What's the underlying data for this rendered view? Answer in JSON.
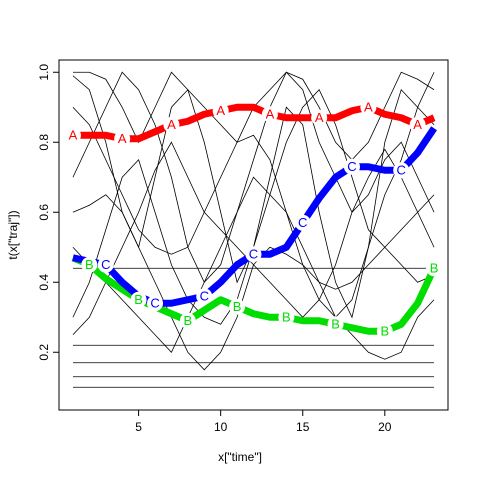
{
  "chart_data": {
    "type": "line",
    "x_label": "x[\"time\"]",
    "y_label": "t(x[\"traj\"])",
    "x": [
      1,
      2,
      3,
      4,
      5,
      6,
      7,
      8,
      9,
      10,
      11,
      12,
      13,
      14,
      15,
      16,
      17,
      18,
      19,
      20,
      21,
      22,
      23
    ],
    "xlim": [
      0.15,
      23.85
    ],
    "ylim": [
      0.035,
      1.035
    ],
    "xticks": [
      5,
      10,
      15,
      20
    ],
    "yticks": [
      0.2,
      0.4,
      0.6,
      0.8,
      {
        "value": 1,
        "label": "1.0"
      }
    ],
    "label_every": 3,
    "series": [
      {
        "name": "A",
        "color": "#ff0000",
        "label_start": 1,
        "values": [
          0.82,
          0.82,
          0.82,
          0.81,
          0.81,
          0.83,
          0.85,
          0.86,
          0.88,
          0.89,
          0.9,
          0.9,
          0.88,
          0.87,
          0.87,
          0.87,
          0.87,
          0.89,
          0.9,
          0.88,
          0.87,
          0.85,
          0.87
        ]
      },
      {
        "name": "B",
        "color": "#00dd00",
        "label_start": 2,
        "values": [
          0.47,
          0.45,
          0.41,
          0.38,
          0.35,
          0.33,
          0.31,
          0.29,
          0.32,
          0.35,
          0.33,
          0.31,
          0.3,
          0.3,
          0.29,
          0.29,
          0.28,
          0.27,
          0.26,
          0.26,
          0.28,
          0.34,
          0.44
        ]
      },
      {
        "name": "C",
        "color": "#0000ff",
        "label_start": 3,
        "values": [
          0.47,
          0.46,
          0.45,
          0.4,
          0.36,
          0.34,
          0.34,
          0.35,
          0.36,
          0.4,
          0.45,
          0.48,
          0.48,
          0.5,
          0.57,
          0.64,
          0.7,
          0.73,
          0.73,
          0.72,
          0.72,
          0.77,
          0.84
        ]
      }
    ],
    "trajectories": [
      [
        0.99,
        0.95,
        0.8,
        0.6,
        0.5,
        0.7,
        0.9,
        0.95,
        0.8,
        0.6,
        0.4,
        0.5,
        0.7,
        0.9,
        0.85,
        0.6,
        0.4,
        0.3,
        0.5,
        0.8,
        0.95,
        0.9,
        0.85
      ],
      [
        0.13,
        0.13,
        0.13,
        0.13,
        0.13,
        0.13,
        0.13,
        0.13,
        0.13,
        0.13,
        0.13,
        0.13,
        0.13,
        0.13,
        0.13,
        0.13,
        0.13,
        0.13,
        0.13,
        0.13,
        0.13,
        0.13,
        0.13
      ],
      [
        0.22,
        0.22,
        0.22,
        0.22,
        0.22,
        0.22,
        0.22,
        0.22,
        0.22,
        0.22,
        0.22,
        0.22,
        0.22,
        0.22,
        0.22,
        0.22,
        0.22,
        0.22,
        0.22,
        0.22,
        0.22,
        0.22,
        0.22
      ],
      [
        0.5,
        0.45,
        0.4,
        0.35,
        0.3,
        0.25,
        0.2,
        0.3,
        0.4,
        0.5,
        0.6,
        0.7,
        0.65,
        0.6,
        0.5,
        0.4,
        0.3,
        0.25,
        0.2,
        0.18,
        0.2,
        0.3,
        0.35
      ],
      [
        0.7,
        0.8,
        0.9,
        1.0,
        0.95,
        0.85,
        0.7,
        0.5,
        0.4,
        0.45,
        0.6,
        0.75,
        0.9,
        1.0,
        0.95,
        0.8,
        0.7,
        0.6,
        0.65,
        0.75,
        0.8,
        0.7,
        0.6
      ],
      [
        0.3,
        0.4,
        0.55,
        0.7,
        0.75,
        0.6,
        0.45,
        0.35,
        0.3,
        0.28,
        0.35,
        0.5,
        0.65,
        0.8,
        0.9,
        0.95,
        0.85,
        0.7,
        0.55,
        0.5,
        0.45,
        0.4,
        0.42
      ],
      [
        0.9,
        0.85,
        0.75,
        0.65,
        0.55,
        0.5,
        0.48,
        0.5,
        0.6,
        0.7,
        0.8,
        0.82,
        0.75,
        0.6,
        0.45,
        0.35,
        0.3,
        0.35,
        0.5,
        0.65,
        0.75,
        0.9,
        1.0
      ],
      [
        0.17,
        0.17,
        0.17,
        0.17,
        0.17,
        0.17,
        0.17,
        0.17,
        0.17,
        0.17,
        0.17,
        0.17,
        0.17,
        0.17,
        0.17,
        0.17,
        0.17,
        0.17,
        0.17,
        0.17,
        0.17,
        0.17,
        0.17
      ],
      [
        0.6,
        0.62,
        0.65,
        0.6,
        0.5,
        0.4,
        0.3,
        0.2,
        0.15,
        0.2,
        0.3,
        0.45,
        0.5,
        0.48,
        0.45,
        0.4,
        0.38,
        0.4,
        0.45,
        0.5,
        0.55,
        0.6,
        0.65
      ],
      [
        1.0,
        1.0,
        0.98,
        0.9,
        0.8,
        0.9,
        1.0,
        0.95,
        0.9,
        0.85,
        0.8,
        0.9,
        0.95,
        1.0,
        0.98,
        0.9,
        0.8,
        0.75,
        0.8,
        0.9,
        1.0,
        0.98,
        0.95
      ],
      [
        0.44,
        0.44,
        0.44,
        0.44,
        0.44,
        0.44,
        0.44,
        0.44,
        0.44,
        0.44,
        0.44,
        0.44,
        0.44,
        0.44,
        0.44,
        0.44,
        0.44,
        0.44,
        0.44,
        0.44,
        0.44,
        0.44,
        0.44
      ],
      [
        0.25,
        0.3,
        0.4,
        0.5,
        0.6,
        0.72,
        0.8,
        0.7,
        0.6,
        0.55,
        0.5,
        0.45,
        0.4,
        0.35,
        0.3,
        0.35,
        0.45,
        0.6,
        0.7,
        0.78,
        0.7,
        0.6,
        0.5
      ],
      [
        0.1,
        0.1,
        0.1,
        0.1,
        0.1,
        0.1,
        0.1,
        0.1,
        0.1,
        0.1,
        0.1,
        0.1,
        0.1,
        0.1,
        0.1,
        0.1,
        0.1,
        0.1,
        0.1,
        0.1,
        0.1,
        0.1,
        0.1
      ]
    ]
  }
}
